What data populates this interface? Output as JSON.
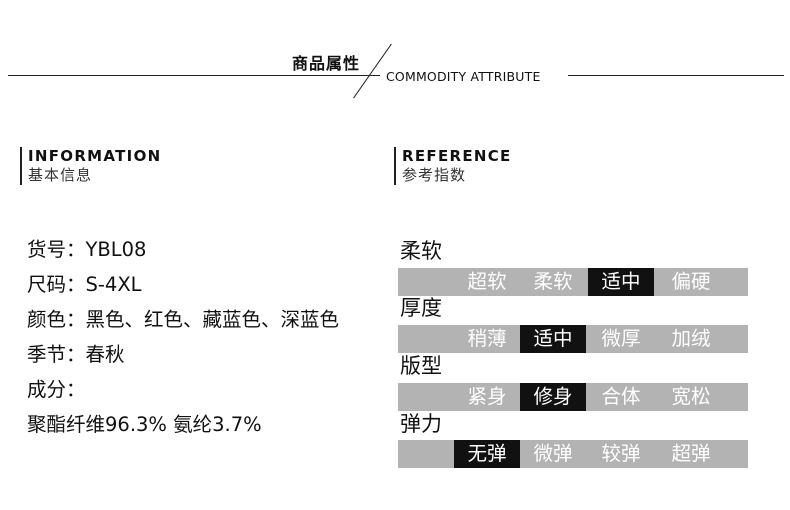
{
  "header": {
    "title_cn": "商品属性",
    "title_en": "COMMODITY ATTRIBUTE"
  },
  "sections": {
    "information": {
      "en": "INFORMATION",
      "cn": "基本信息"
    },
    "reference": {
      "en": "REFERENCE",
      "cn": "参考指数"
    }
  },
  "info_lines": [
    "货号：YBL08",
    "尺码：S-4XL",
    "颜色：黑色、红色、藏蓝色、深蓝色",
    "季节：春秋",
    "成分：",
    "聚酯纤维96.3% 氨纶3.7%"
  ],
  "reference": [
    {
      "label": "柔软",
      "options": [
        "超软",
        "柔软",
        "适中",
        "偏硬"
      ],
      "selected_index": 2
    },
    {
      "label": "厚度",
      "options": [
        "稍薄",
        "适中",
        "微厚",
        "加绒"
      ],
      "selected_index": 1
    },
    {
      "label": "版型",
      "options": [
        "紧身",
        "修身",
        "合体",
        "宽松"
      ],
      "selected_index": 1
    },
    {
      "label": "弹力",
      "options": [
        "无弹",
        "微弹",
        "较弹",
        "超弹"
      ],
      "selected_index": 0
    }
  ],
  "colors": {
    "bar": "#b3b3b3",
    "selected": "#111111",
    "option_text": "#ffffff"
  }
}
